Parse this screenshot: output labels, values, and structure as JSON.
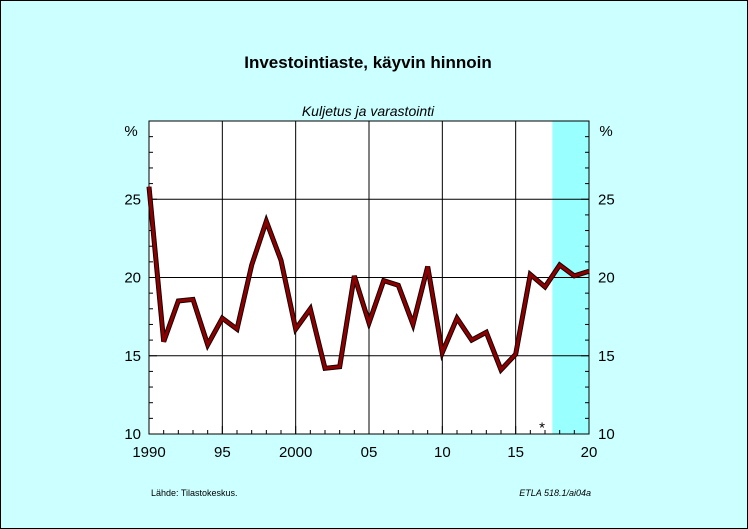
{
  "chart_data": {
    "type": "line",
    "title": "Investointiaste, käyvin hinnoin",
    "subtitle": "Kuljetus ja varastointi",
    "ylabel_left": "%",
    "ylabel_right": "%",
    "xlim": [
      1990,
      2020
    ],
    "ylim": [
      10,
      30
    ],
    "yticks": [
      10,
      15,
      20,
      25
    ],
    "ytick_labels": [
      "10",
      "15",
      "20",
      "25"
    ],
    "xticks": [
      1990,
      1995,
      2000,
      2005,
      2010,
      2015,
      2020
    ],
    "xtick_labels": [
      "1990",
      "95",
      "2000",
      "05",
      "10",
      "15",
      "20"
    ],
    "grid": true,
    "forecast_shade": [
      2017.5,
      2020
    ],
    "forecast_color": "#99ffff",
    "line_color": "#8b0000",
    "series": [
      {
        "x": [
          1990,
          1991,
          1992,
          1993,
          1994,
          1995,
          1996,
          1997,
          1998,
          1999,
          2000,
          2001,
          2002,
          2003,
          2004,
          2005,
          2006,
          2007,
          2008,
          2009,
          2010,
          2011,
          2012,
          2013,
          2014,
          2015,
          2016,
          2017,
          2018,
          2019,
          2020
        ],
        "y": [
          25.8,
          15.9,
          18.5,
          18.6,
          15.7,
          17.4,
          16.7,
          20.8,
          23.6,
          21.1,
          16.7,
          18.0,
          14.2,
          14.3,
          20.1,
          17.1,
          19.8,
          19.5,
          17.0,
          20.7,
          15.2,
          17.4,
          16.0,
          16.5,
          14.1,
          15.1,
          20.2,
          19.4,
          20.8,
          20.1,
          20.4
        ]
      }
    ],
    "annotation": "*",
    "annotation_x": 2016.8,
    "annotation_y": 10.6,
    "source": "Lähde:   Tilastokeskus.",
    "credit": "ETLA 518.1/ai04a"
  }
}
